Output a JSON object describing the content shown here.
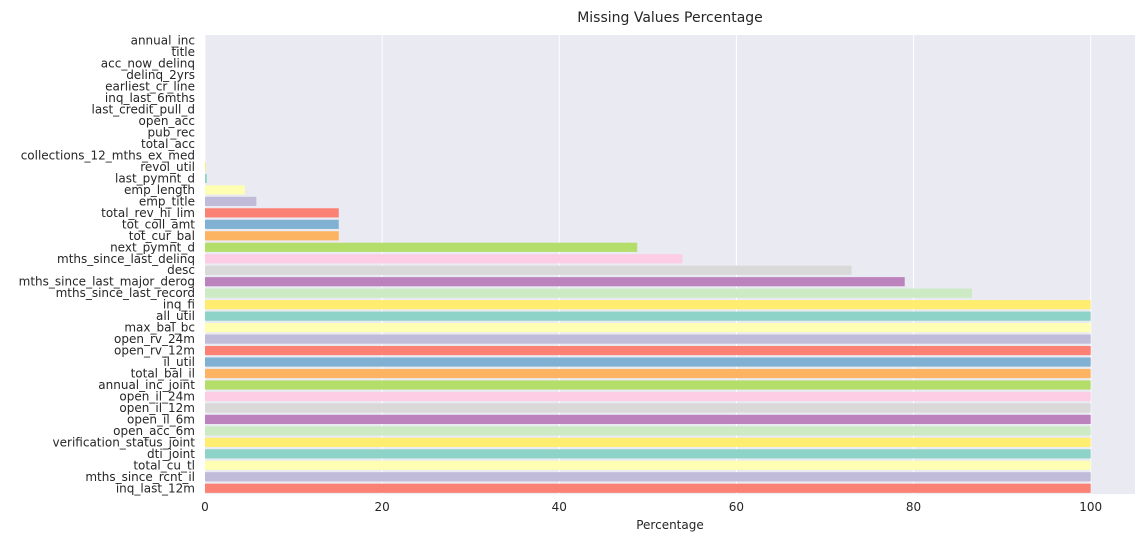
{
  "chart_data": {
    "type": "bar",
    "orientation": "horizontal",
    "title": "Missing Values Percentage",
    "xlabel": "Percentage",
    "ylabel": "",
    "xlim": [
      0,
      105
    ],
    "xticks": [
      0,
      20,
      40,
      60,
      80,
      100
    ],
    "grid": true,
    "legend": "none",
    "categories": [
      "annual_inc",
      "title",
      "acc_now_delinq",
      "delinq_2yrs",
      "earliest_cr_line",
      "inq_last_6mths",
      "last_credit_pull_d",
      "open_acc",
      "pub_rec",
      "total_acc",
      "collections_12_mths_ex_med",
      "revol_util",
      "last_pymnt_d",
      "emp_length",
      "emp_title",
      "total_rev_hi_lim",
      "tot_coll_amt",
      "tot_cur_bal",
      "next_pymnt_d",
      "mths_since_last_delinq",
      "desc",
      "mths_since_last_major_derog",
      "mths_since_last_record",
      "inq_fi",
      "all_util",
      "max_bal_bc",
      "open_rv_24m",
      "open_rv_12m",
      "il_util",
      "total_bal_il",
      "annual_inc_joint",
      "open_il_24m",
      "open_il_12m",
      "open_il_6m",
      "open_acc_6m",
      "verification_status_joint",
      "dti_joint",
      "total_cu_tl",
      "mths_since_rcnt_il",
      "inq_last_12m"
    ],
    "values": [
      0.0,
      0.0,
      0.0,
      0.0,
      0.0,
      0.0,
      0.0,
      0.0,
      0.0,
      0.0,
      0.0,
      0.1,
      0.2,
      4.5,
      5.8,
      15.1,
      15.1,
      15.1,
      48.8,
      53.9,
      73.0,
      79.0,
      86.6,
      100,
      100,
      100,
      100,
      100,
      100,
      100,
      100,
      100,
      100,
      100,
      100,
      100,
      100,
      100,
      100,
      100
    ],
    "colors": [
      "#8dd3c7",
      "#feffb3",
      "#bfbbd9",
      "#fa8174",
      "#81b1d2",
      "#fdb462",
      "#b3de69",
      "#fccde5",
      "#d9d9d9",
      "#bc82bd",
      "#ccebc4",
      "#ffed6f"
    ],
    "plot_background": "#eaeaf2",
    "grid_color": "#ffffff"
  }
}
